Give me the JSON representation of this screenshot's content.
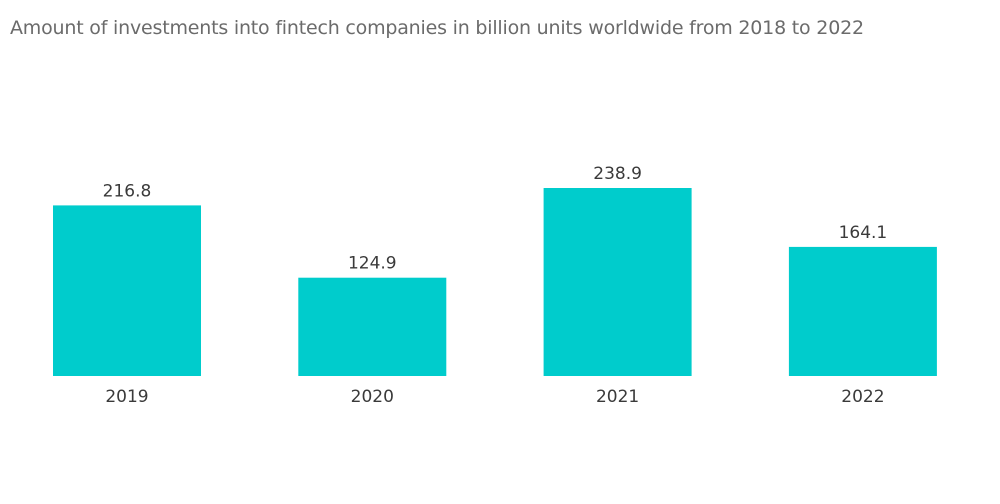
{
  "title": "Amount of investments into fintech companies in billion units worldwide from 2018 to 2022",
  "colors": {
    "bar": "#00cccc",
    "text": "#3a3a3a",
    "title": "#6b6b6b"
  },
  "chart_data": {
    "type": "bar",
    "title": "Amount of investments into fintech companies in billion units worldwide from 2018 to 2022",
    "xlabel": "",
    "ylabel": "",
    "categories": [
      "2019",
      "2020",
      "2021",
      "2022"
    ],
    "values": [
      216.8,
      124.9,
      238.9,
      164.1
    ],
    "data_labels": [
      "216.8",
      "124.9",
      "238.9",
      "164.1"
    ],
    "ylim": [
      0,
      238.9
    ],
    "grid": false,
    "legend": "none"
  }
}
